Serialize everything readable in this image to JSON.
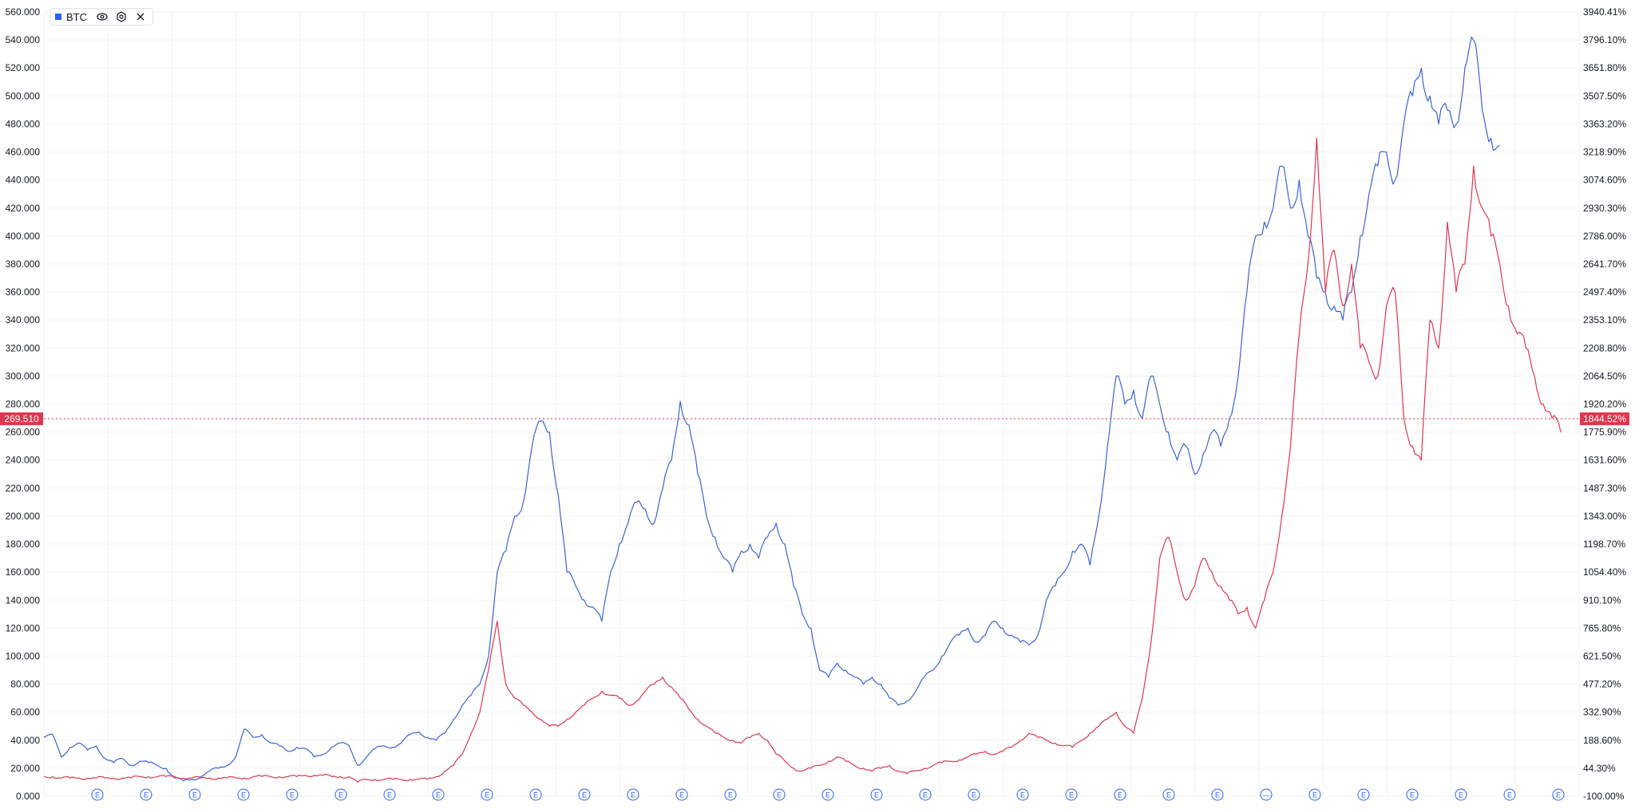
{
  "legend": {
    "symbol": "BTC",
    "eye_icon": "eye-icon",
    "settings_icon": "gear-icon",
    "close_icon": "close-icon"
  },
  "colors": {
    "series_btc": "#3b63d8",
    "series_red": "#e0364f",
    "grid": "#f0f3fa",
    "axis_text": "#131722",
    "price_tag": "#e0364f"
  },
  "chart_data": {
    "type": "line",
    "left_axis": {
      "ticks": [
        "0.000",
        "20.000",
        "40.000",
        "60.000",
        "80.000",
        "100.000",
        "120.000",
        "140.000",
        "160.000",
        "180.000",
        "200.000",
        "220.000",
        "240.000",
        "260.000",
        "280.000",
        "300.000",
        "320.000",
        "340.000",
        "360.000",
        "380.000",
        "400.000",
        "420.000",
        "440.000",
        "460.000",
        "480.000",
        "500.000",
        "520.000",
        "540.000",
        "560.000"
      ],
      "range": [
        0,
        560
      ]
    },
    "right_axis": {
      "ticks": [
        "-100.00%",
        "44.30%",
        "188.60%",
        "332.90%",
        "477.20%",
        "621.50%",
        "765.80%",
        "910.10%",
        "1054.40%",
        "1198.70%",
        "1343.00%",
        "1487.30%",
        "1631.60%",
        "1775.90%",
        "1920.20%",
        "2064.50%",
        "2208.80%",
        "2353.10%",
        "2497.40%",
        "2641.70%",
        "2786.00%",
        "2930.30%",
        "3074.60%",
        "3218.90%",
        "3363.20%",
        "3507.50%",
        "3651.80%",
        "3796.10%",
        "3940.41%"
      ]
    },
    "current_price": {
      "left_label": "269.510",
      "right_label": "1844.52%",
      "value": 269.51
    },
    "series": [
      {
        "name": "BTC",
        "color": "#3b63d8",
        "values": [
          42,
          44,
          28,
          35,
          38,
          33,
          36,
          27,
          24,
          27,
          22,
          25,
          24,
          22,
          20,
          13,
          11,
          12,
          14,
          18,
          20,
          22,
          28,
          48,
          42,
          44,
          38,
          36,
          32,
          35,
          34,
          28,
          30,
          35,
          38,
          36,
          22,
          28,
          34,
          36,
          35,
          38,
          44,
          46,
          42,
          40,
          45,
          55,
          65,
          72,
          80,
          100,
          160,
          175,
          200,
          210,
          250,
          268,
          260,
          215,
          160,
          150,
          140,
          135,
          125,
          160,
          180,
          195,
          210,
          205,
          195,
          220,
          240,
          282,
          265,
          230,
          200,
          185,
          170,
          160,
          175,
          180,
          170,
          185,
          195,
          180,
          150,
          130,
          120,
          90,
          85,
          95,
          90,
          85,
          80,
          85,
          80,
          70,
          65,
          68,
          75,
          85,
          90,
          100,
          110,
          115,
          120,
          110,
          115,
          125,
          120,
          115,
          110,
          108,
          115,
          140,
          150,
          160,
          175,
          180,
          165,
          200,
          250,
          300,
          280,
          290,
          270,
          300,
          280,
          260,
          240,
          250,
          230,
          245,
          260,
          250,
          270,
          300,
          360,
          400,
          410,
          420,
          450,
          420,
          440,
          400,
          370,
          360,
          350,
          340,
          360,
          400,
          430,
          450,
          460,
          440,
          480,
          500,
          520,
          500,
          480,
          490,
          480,
          520,
          540,
          490,
          470,
          465
        ]
      },
      {
        "name": "",
        "color": "#e0364f",
        "values": [
          14,
          14,
          13,
          13,
          13,
          13,
          13,
          13,
          13,
          13,
          13,
          14,
          14,
          14,
          14,
          14,
          13,
          13,
          13,
          13,
          13,
          13,
          13,
          13,
          14,
          14,
          14,
          14,
          14,
          14,
          15,
          15,
          15,
          14,
          14,
          14,
          10,
          12,
          12,
          12,
          12,
          12,
          12,
          12,
          12,
          14,
          18,
          22,
          30,
          45,
          60,
          90,
          125,
          80,
          70,
          65,
          60,
          55,
          50,
          50,
          55,
          60,
          65,
          70,
          75,
          72,
          70,
          65,
          68,
          75,
          80,
          85,
          78,
          70,
          62,
          55,
          50,
          45,
          42,
          40,
          38,
          42,
          45,
          40,
          30,
          25,
          20,
          18,
          20,
          22,
          25,
          28,
          25,
          22,
          20,
          18,
          20,
          22,
          18,
          16,
          18,
          20,
          22,
          24,
          25,
          26,
          28,
          30,
          32,
          30,
          32,
          35,
          40,
          45,
          42,
          40,
          38,
          36,
          35,
          40,
          45,
          50,
          55,
          60,
          50,
          45,
          70,
          110,
          170,
          185,
          160,
          140,
          150,
          170,
          160,
          150,
          140,
          130,
          135,
          120,
          140,
          160,
          200,
          250,
          330,
          380,
          470,
          360,
          390,
          350,
          380,
          320,
          310,
          300,
          350,
          360,
          270,
          250,
          240,
          340,
          320,
          410,
          360,
          380,
          450,
          420,
          400,
          380,
          350,
          330,
          320,
          300,
          280,
          270,
          260
        ]
      }
    ],
    "event_markers": [
      "E",
      "E",
      "E",
      "E",
      "E",
      "E",
      "E",
      "E",
      "E",
      "E",
      "E",
      "E",
      "E",
      "E",
      "E",
      "E",
      "E",
      "E",
      "E",
      "E",
      "E",
      "E",
      "E",
      "E",
      "—",
      "E",
      "E",
      "E",
      "E",
      "E",
      "E"
    ],
    "grid": true,
    "legend_placement": "top-left"
  }
}
